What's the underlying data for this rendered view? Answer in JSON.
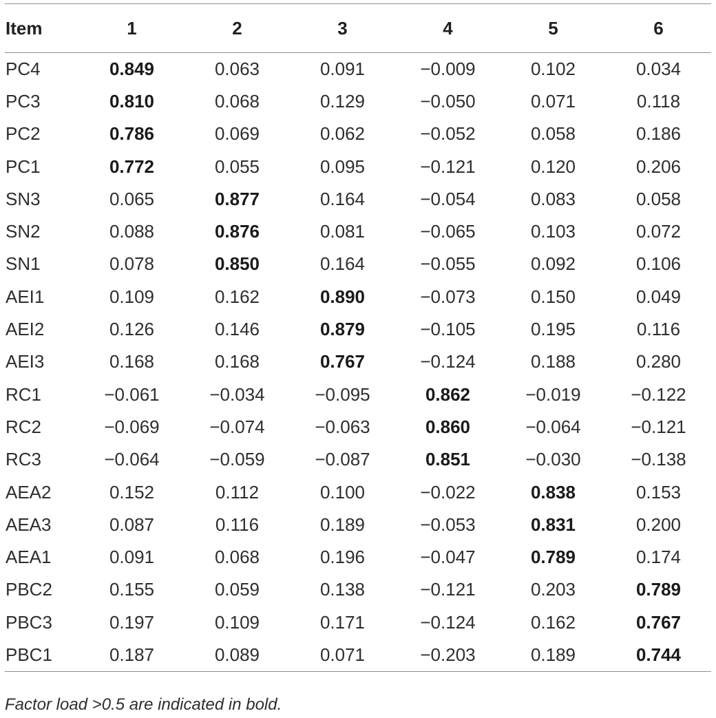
{
  "table": {
    "headers": [
      "Item",
      "1",
      "2",
      "3",
      "4",
      "5",
      "6"
    ],
    "rows": [
      {
        "item": "PC4",
        "values": [
          "0.849",
          "0.063",
          "0.091",
          "−0.009",
          "0.102",
          "0.034"
        ],
        "bold": 0
      },
      {
        "item": "PC3",
        "values": [
          "0.810",
          "0.068",
          "0.129",
          "−0.050",
          "0.071",
          "0.118"
        ],
        "bold": 0
      },
      {
        "item": "PC2",
        "values": [
          "0.786",
          "0.069",
          "0.062",
          "−0.052",
          "0.058",
          "0.186"
        ],
        "bold": 0
      },
      {
        "item": "PC1",
        "values": [
          "0.772",
          "0.055",
          "0.095",
          "−0.121",
          "0.120",
          "0.206"
        ],
        "bold": 0
      },
      {
        "item": "SN3",
        "values": [
          "0.065",
          "0.877",
          "0.164",
          "−0.054",
          "0.083",
          "0.058"
        ],
        "bold": 1
      },
      {
        "item": "SN2",
        "values": [
          "0.088",
          "0.876",
          "0.081",
          "−0.065",
          "0.103",
          "0.072"
        ],
        "bold": 1
      },
      {
        "item": "SN1",
        "values": [
          "0.078",
          "0.850",
          "0.164",
          "−0.055",
          "0.092",
          "0.106"
        ],
        "bold": 1
      },
      {
        "item": "AEI1",
        "values": [
          "0.109",
          "0.162",
          "0.890",
          "−0.073",
          "0.150",
          "0.049"
        ],
        "bold": 2
      },
      {
        "item": "AEI2",
        "values": [
          "0.126",
          "0.146",
          "0.879",
          "−0.105",
          "0.195",
          "0.116"
        ],
        "bold": 2
      },
      {
        "item": "AEI3",
        "values": [
          "0.168",
          "0.168",
          "0.767",
          "−0.124",
          "0.188",
          "0.280"
        ],
        "bold": 2
      },
      {
        "item": "RC1",
        "values": [
          "−0.061",
          "−0.034",
          "−0.095",
          "0.862",
          "−0.019",
          "−0.122"
        ],
        "bold": 3
      },
      {
        "item": "RC2",
        "values": [
          "−0.069",
          "−0.074",
          "−0.063",
          "0.860",
          "−0.064",
          "−0.121"
        ],
        "bold": 3
      },
      {
        "item": "RC3",
        "values": [
          "−0.064",
          "−0.059",
          "−0.087",
          "0.851",
          "−0.030",
          "−0.138"
        ],
        "bold": 3
      },
      {
        "item": "AEA2",
        "values": [
          "0.152",
          "0.112",
          "0.100",
          "−0.022",
          "0.838",
          "0.153"
        ],
        "bold": 4
      },
      {
        "item": "AEA3",
        "values": [
          "0.087",
          "0.116",
          "0.189",
          "−0.053",
          "0.831",
          "0.200"
        ],
        "bold": 4
      },
      {
        "item": "AEA1",
        "values": [
          "0.091",
          "0.068",
          "0.196",
          "−0.047",
          "0.789",
          "0.174"
        ],
        "bold": 4
      },
      {
        "item": "PBC2",
        "values": [
          "0.155",
          "0.059",
          "0.138",
          "−0.121",
          "0.203",
          "0.789"
        ],
        "bold": 5
      },
      {
        "item": "PBC3",
        "values": [
          "0.197",
          "0.109",
          "0.171",
          "−0.124",
          "0.162",
          "0.767"
        ],
        "bold": 5
      },
      {
        "item": "PBC1",
        "values": [
          "0.187",
          "0.089",
          "0.071",
          "−0.203",
          "0.189",
          "0.744"
        ],
        "bold": 5
      }
    ]
  },
  "footnote": "Factor load >0.5 are indicated in bold."
}
